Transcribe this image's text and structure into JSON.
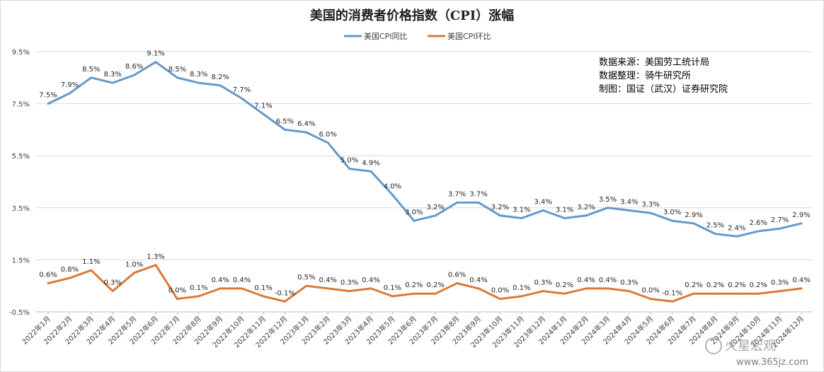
{
  "chart_data": {
    "type": "line",
    "title": "美国的消费者价格指数（CPI）涨幅",
    "xlabel": "",
    "ylabel": "",
    "ylim": [
      -0.5,
      9.5
    ],
    "yticks": [
      "9.5%",
      "7.5%",
      "5.5%",
      "3.5%",
      "1.5%",
      "-0.5%"
    ],
    "ytick_values": [
      9.5,
      7.5,
      5.5,
      3.5,
      1.5,
      -0.5
    ],
    "grid": true,
    "legend_position": "top-center",
    "categories": [
      "2022年1月",
      "2022年2月",
      "2022年3月",
      "2022年4月",
      "2022年5月",
      "2022年6月",
      "2022年7月",
      "2022年8月",
      "2022年9月",
      "2022年10月",
      "2022年11月",
      "2022年12月",
      "2023年1月",
      "2023年2月",
      "2023年3月",
      "2023年4月",
      "2023年5月",
      "2023年6月",
      "2023年7月",
      "2023年8月",
      "2023年9月",
      "2023年10月",
      "2023年11月",
      "2023年12月",
      "2024年1月",
      "2024年2月",
      "2024年3月",
      "2024年4月",
      "2024年5月",
      "2024年6月",
      "2024年7月",
      "2024年8月",
      "2024年9月",
      "2024年10月",
      "2024年11月",
      "2024年12月"
    ],
    "series": [
      {
        "name": "美国CPI同比",
        "color": "#6699c8",
        "values": [
          7.5,
          7.9,
          8.5,
          8.3,
          8.6,
          9.1,
          8.5,
          8.3,
          8.2,
          7.7,
          7.1,
          6.5,
          6.4,
          6.0,
          5.0,
          4.9,
          4.0,
          3.0,
          3.2,
          3.7,
          3.7,
          3.2,
          3.1,
          3.4,
          3.1,
          3.2,
          3.5,
          3.4,
          3.3,
          3.0,
          2.9,
          2.5,
          2.4,
          2.6,
          2.7,
          2.9
        ],
        "labels": [
          "7.5%",
          "7.9%",
          "8.5%",
          "8.3%",
          "8.6%",
          "9.1%",
          "8.5%",
          "8.3%",
          "8.2%",
          "7.7%",
          "7.1%",
          "6.5%",
          "6.4%",
          "6.0%",
          "5.0%",
          "4.9%",
          "4.0%",
          "3.0%",
          "3.2%",
          "3.7%",
          "3.7%",
          "3.2%",
          "3.1%",
          "3.4%",
          "3.1%",
          "3.2%",
          "3.5%",
          "3.4%",
          "3.3%",
          "3.0%",
          "2.9%",
          "2.5%",
          "2.4%",
          "2.6%",
          "2.7%",
          "2.9%"
        ]
      },
      {
        "name": "美国CPI环比",
        "color": "#dc7a35",
        "values": [
          0.6,
          0.8,
          1.1,
          0.3,
          1.0,
          1.3,
          0.0,
          0.1,
          0.4,
          0.4,
          0.1,
          -0.1,
          0.5,
          0.4,
          0.3,
          0.4,
          0.1,
          0.2,
          0.2,
          0.6,
          0.4,
          0.0,
          0.1,
          0.3,
          0.2,
          0.4,
          0.4,
          0.3,
          0.0,
          -0.1,
          0.2,
          0.2,
          0.2,
          0.2,
          0.3,
          0.4
        ],
        "labels": [
          "0.6%",
          "0.8%",
          "1.1%",
          "0.3%",
          "1.0%",
          "1.3%",
          "0.0%",
          "0.1%",
          "0.4%",
          "0.4%",
          "0.1%",
          "-0.1%",
          "0.5%",
          "0.4%",
          "0.3%",
          "0.4%",
          "0.1%",
          "0.2%",
          "0.2%",
          "0.6%",
          "0.4%",
          "0.0%",
          "0.1%",
          "0.3%",
          "0.2%",
          "0.4%",
          "0.4%",
          "0.3%",
          "0.0%",
          "-0.1%",
          "0.2%",
          "0.2%",
          "0.2%",
          "0.2%",
          "0.3%",
          "0.4%"
        ]
      }
    ],
    "annotations": [
      "数据来源：美国劳工统计局",
      "数据整理：骑牛研究所",
      "制图：国证（武汉）证券研究院"
    ]
  },
  "watermark": {
    "text": "火星宏观",
    "url": "www.365jz.com"
  }
}
